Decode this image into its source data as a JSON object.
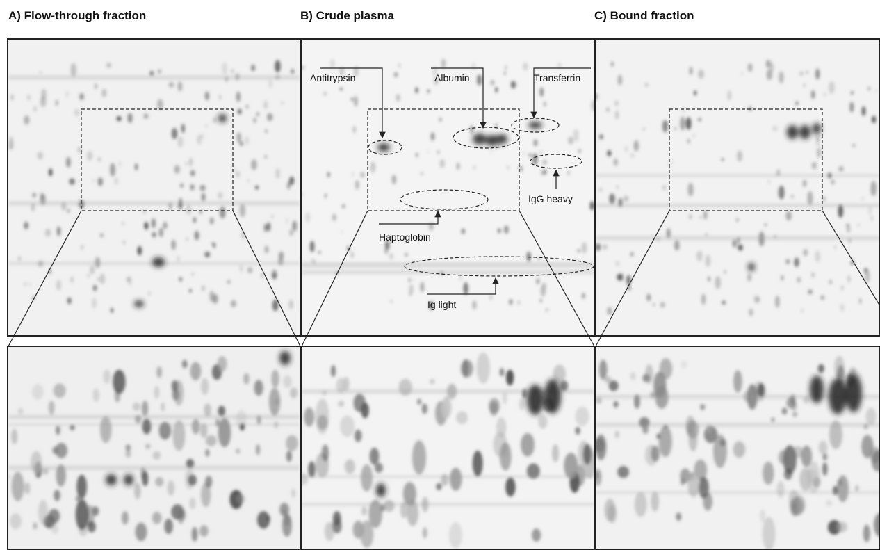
{
  "panels": [
    {
      "title": "A) Flow-through fraction"
    },
    {
      "title": "B) Crude plasma",
      "annotations": [
        "Antitrypsin",
        "Albumin",
        "Transferrin",
        "IgG heavy",
        "Haptoglobin",
        "Ig light"
      ]
    },
    {
      "title": "C) Bound fraction"
    }
  ]
}
